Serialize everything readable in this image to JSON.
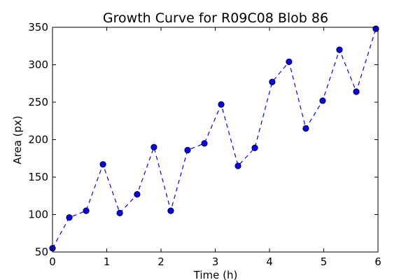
{
  "chart_data": {
    "type": "line",
    "title": "Growth Curve for R09C08 Blob 86",
    "xlabel": "Time (h)",
    "ylabel": "Area (px)",
    "xlim": [
      0,
      6
    ],
    "ylim": [
      50,
      350
    ],
    "xticks": [
      0,
      1,
      2,
      3,
      4,
      5,
      6
    ],
    "yticks": [
      50,
      100,
      150,
      200,
      250,
      300,
      350
    ],
    "grid": false,
    "line_style": "dashed",
    "marker": "circle",
    "color": "#0000ff",
    "series": [
      {
        "x": [
          0.0,
          0.31,
          0.62,
          0.93,
          1.24,
          1.56,
          1.87,
          2.18,
          2.49,
          2.8,
          3.11,
          3.42,
          3.73,
          4.05,
          4.36,
          4.67,
          4.98,
          5.29,
          5.6,
          5.96
        ],
        "values": [
          55,
          96,
          105,
          167,
          102,
          127,
          190,
          105,
          186,
          195,
          247,
          165,
          189,
          277,
          304,
          215,
          252,
          320,
          264,
          348
        ]
      }
    ]
  }
}
